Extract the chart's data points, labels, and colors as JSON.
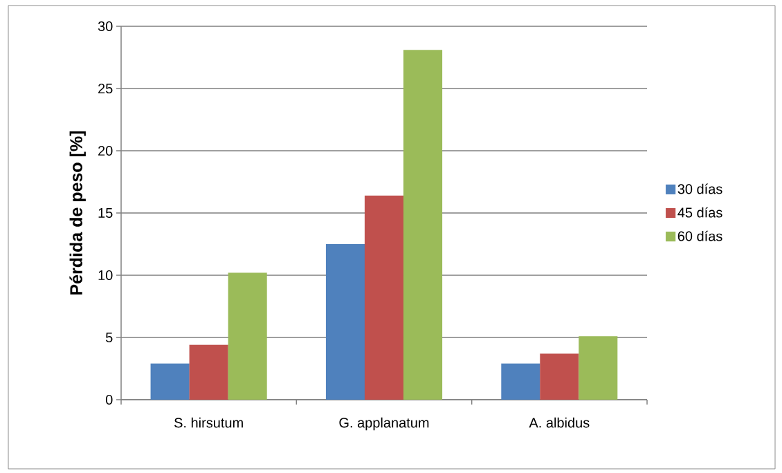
{
  "chart_data": {
    "type": "bar",
    "ylabel": "Pérdida de peso [%]",
    "categories": [
      "S. hirsutum",
      "G. applanatum",
      "A. albidus"
    ],
    "series": [
      {
        "name": "30 días",
        "color": "#4f81bd",
        "values": [
          2.9,
          12.5,
          2.9
        ]
      },
      {
        "name": "45 días",
        "color": "#c0504d",
        "values": [
          4.4,
          16.4,
          3.7
        ]
      },
      {
        "name": "60 días",
        "color": "#9bbb59",
        "values": [
          10.2,
          28.1,
          5.1
        ]
      }
    ],
    "ylim": [
      0,
      30
    ],
    "yticks": [
      0,
      5,
      10,
      15,
      20,
      25,
      30
    ],
    "grid": "y",
    "legend": "right"
  }
}
